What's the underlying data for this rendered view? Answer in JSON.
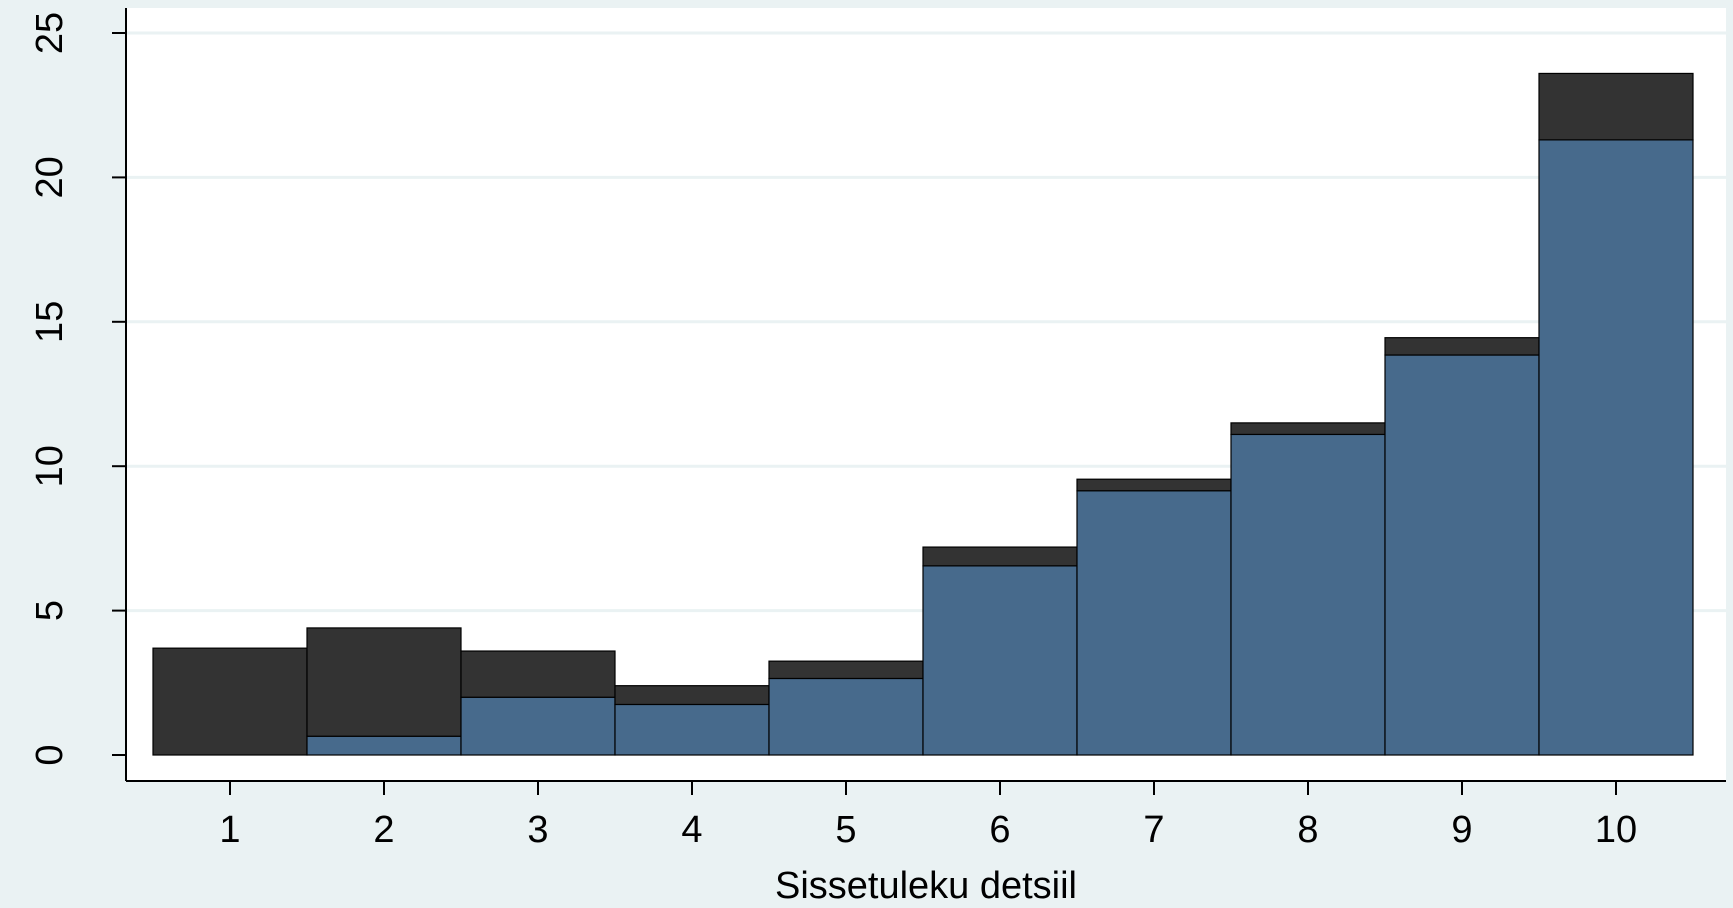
{
  "chart_data": {
    "type": "bar",
    "stacked": true,
    "title": "",
    "xlabel": "Sissetuleku detsiil",
    "ylabel": "",
    "categories": [
      "1",
      "2",
      "3",
      "4",
      "5",
      "6",
      "7",
      "8",
      "9",
      "10"
    ],
    "series": [
      {
        "color": "#476a8c",
        "values": [
          0.0,
          0.65,
          2.0,
          1.75,
          2.65,
          6.55,
          9.15,
          11.1,
          13.85,
          21.3
        ]
      },
      {
        "color": "#333333",
        "values": [
          3.7,
          3.75,
          1.6,
          0.65,
          0.6,
          0.65,
          0.4,
          0.4,
          0.6,
          2.3
        ]
      }
    ],
    "ylim": [
      0,
      25
    ],
    "yticks": [
      "0",
      "5",
      "10",
      "15",
      "20",
      "25"
    ],
    "grid": true,
    "legend": "none",
    "colors": {
      "background": "#eaf2f3",
      "plot_background": "#ffffff",
      "gridline": "#eaf2f3",
      "bar_outline": "#000000"
    }
  }
}
